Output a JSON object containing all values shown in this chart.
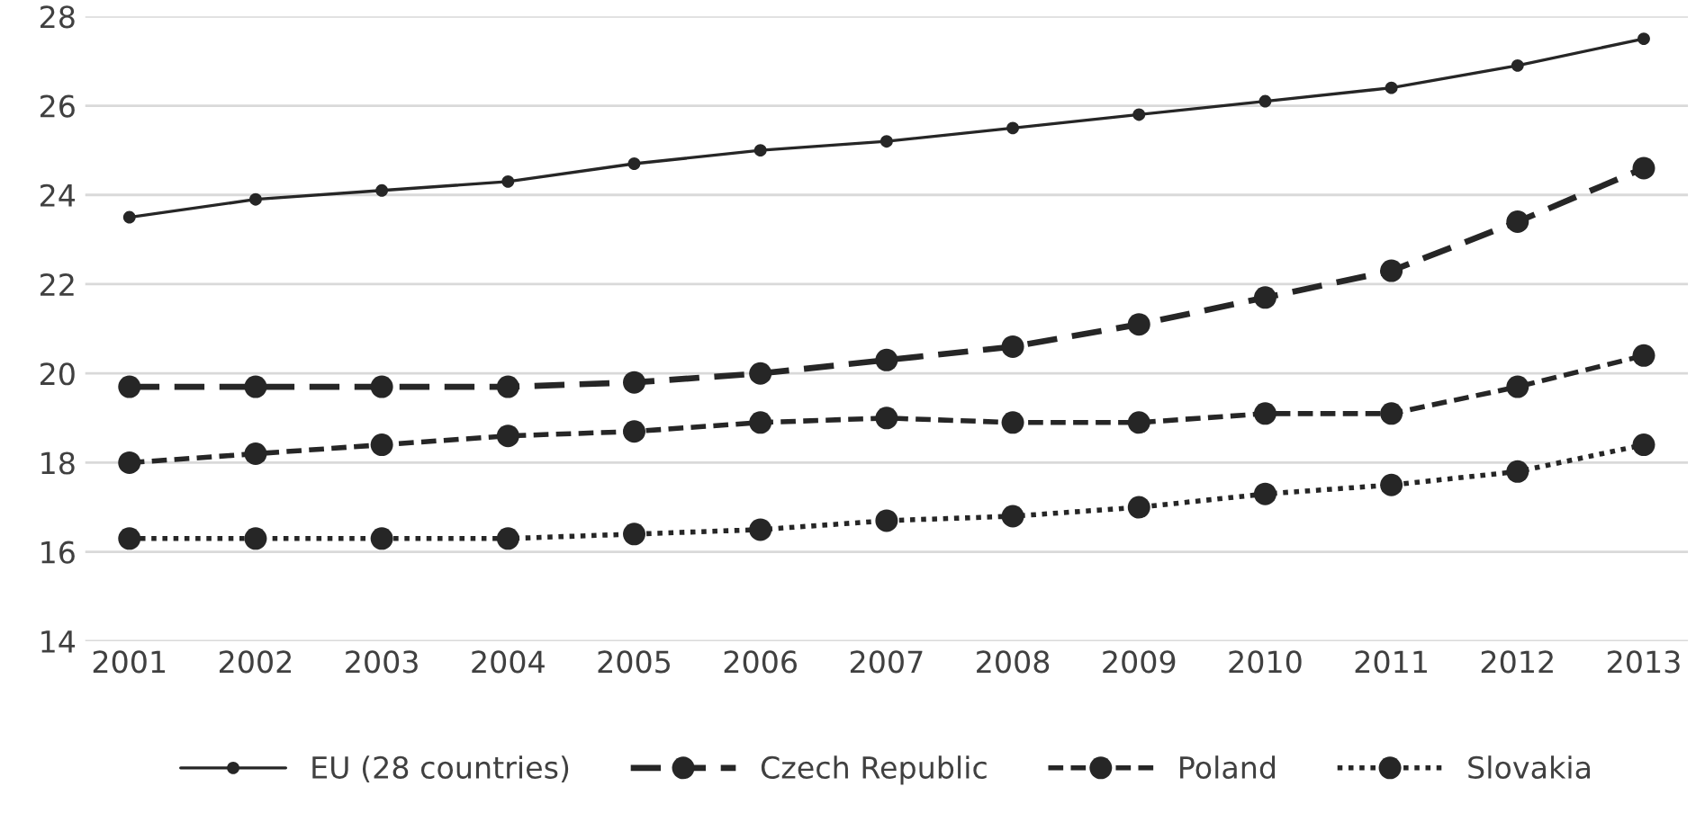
{
  "chart_data": {
    "type": "line",
    "categories": [
      "2001",
      "2002",
      "2003",
      "2004",
      "2005",
      "2006",
      "2007",
      "2008",
      "2009",
      "2010",
      "2011",
      "2012",
      "2013"
    ],
    "series": [
      {
        "name": "EU (28 countries)",
        "color": "#262626",
        "line_style": "solid",
        "marker": "circle",
        "values": [
          23.5,
          23.9,
          24.1,
          24.3,
          24.7,
          25.0,
          25.2,
          25.5,
          25.8,
          26.1,
          26.4,
          26.9,
          27.5
        ]
      },
      {
        "name": "Czech Republic",
        "color": "#262626",
        "line_style": "dashed",
        "marker": "circle",
        "values": [
          19.7,
          19.7,
          19.7,
          19.7,
          19.8,
          20.0,
          20.3,
          20.6,
          21.1,
          21.7,
          22.3,
          23.4,
          24.6
        ]
      },
      {
        "name": "Poland",
        "color": "#262626",
        "line_style": "dashed",
        "marker": "circle",
        "values": [
          18.0,
          18.2,
          18.4,
          18.6,
          18.7,
          18.9,
          19.0,
          18.9,
          18.9,
          19.1,
          19.1,
          19.7,
          20.4
        ]
      },
      {
        "name": "Slovakia",
        "color": "#262626",
        "line_style": "dotted",
        "marker": "circle",
        "values": [
          16.3,
          16.3,
          16.3,
          16.3,
          16.4,
          16.5,
          16.7,
          16.8,
          17.0,
          17.3,
          17.5,
          17.8,
          18.4
        ]
      }
    ],
    "ylim": [
      14,
      28
    ],
    "yticks": [
      14,
      16,
      18,
      20,
      22,
      24,
      26,
      28
    ],
    "grid": "y",
    "legend": "bottom"
  }
}
